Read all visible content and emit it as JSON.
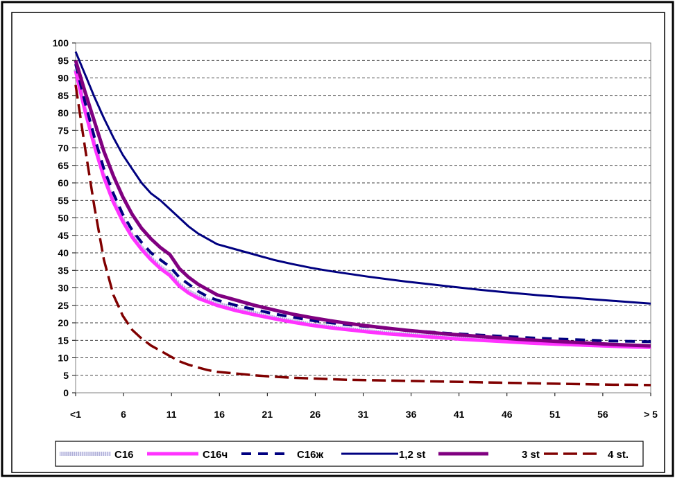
{
  "chart_data": {
    "type": "line",
    "title": "",
    "xlabel": "",
    "ylabel": "",
    "ylim": [
      0,
      100
    ],
    "yticks": [
      0,
      5,
      10,
      15,
      20,
      25,
      30,
      35,
      40,
      45,
      50,
      55,
      60,
      65,
      70,
      75,
      80,
      85,
      90,
      95,
      100
    ],
    "x_tick_labels": [
      "<1",
      "6",
      "11",
      "16",
      "21",
      "26",
      "31",
      "36",
      "41",
      "46",
      "51",
      "56",
      "> 5"
    ],
    "x": [
      1,
      2,
      3,
      4,
      5,
      6,
      7,
      8,
      9,
      10,
      11,
      12,
      13,
      14,
      15,
      16,
      18,
      20,
      22,
      24,
      26,
      28,
      30,
      32,
      34,
      36,
      38,
      40,
      42,
      44,
      46,
      48,
      50,
      52,
      54,
      56,
      58,
      60,
      62
    ],
    "grid": "horizontal dashed",
    "legend_position": "bottom",
    "series": [
      {
        "name": "C16",
        "color": "#c8c8e8",
        "style": "hatched",
        "values": [
          92.5,
          81,
          71,
          62,
          55,
          49.5,
          45,
          41.5,
          38.5,
          36,
          34,
          31,
          29,
          27.5,
          26.5,
          25.5,
          24,
          22.8,
          21.5,
          20.5,
          19.5,
          18.8,
          18.2,
          17.6,
          17.1,
          16.7,
          16.3,
          15.9,
          15.5,
          15.2,
          14.9,
          14.6,
          14.3,
          14.0,
          13.8,
          13.6,
          13.4,
          13.2,
          13.1
        ]
      },
      {
        "name": "C16ч",
        "color": "#ff33ff",
        "style": "solid",
        "values": [
          92,
          80.5,
          70.5,
          61.5,
          54.5,
          49,
          44.5,
          41,
          38,
          35.5,
          33.5,
          30.5,
          28.5,
          27,
          26,
          25,
          23.5,
          22.3,
          21.2,
          20.2,
          19.3,
          18.6,
          18,
          17.4,
          16.9,
          16.5,
          16.1,
          15.7,
          15.3,
          15,
          14.7,
          14.4,
          14.1,
          13.9,
          13.7,
          13.5,
          13.3,
          13.1,
          13
        ]
      },
      {
        "name": "C16ж",
        "color": "#000080",
        "style": "dashed",
        "values": [
          94,
          83,
          73,
          64,
          57,
          51,
          46.5,
          43,
          40,
          38,
          36,
          33,
          31,
          29,
          27.5,
          26.5,
          25,
          23.8,
          22.6,
          21.6,
          20.7,
          20,
          19.4,
          18.9,
          18.4,
          17.9,
          17.5,
          17.1,
          16.8,
          16.5,
          16.2,
          15.9,
          15.6,
          15.4,
          15.2,
          15,
          14.8,
          14.7,
          14.6
        ]
      },
      {
        "name": "1,2 st",
        "color": "#000080",
        "style": "solid",
        "values": [
          97.5,
          91,
          84.5,
          78.5,
          73,
          68,
          64,
          60,
          57,
          55,
          52.5,
          50,
          47.5,
          45.5,
          44,
          42.5,
          41,
          39.5,
          38,
          36.8,
          35.7,
          34.8,
          34,
          33.2,
          32.5,
          31.8,
          31.2,
          30.6,
          30,
          29.4,
          28.9,
          28.4,
          27.9,
          27.5,
          27.1,
          26.7,
          26.3,
          25.9,
          25.5
        ]
      },
      {
        "name": "3 st",
        "color": "#800080",
        "style": "solid",
        "values": [
          95,
          86,
          77.5,
          69,
          62,
          56,
          51,
          47,
          44,
          41.5,
          39.5,
          35.5,
          33,
          31,
          29.5,
          28,
          26.5,
          25,
          23.7,
          22.5,
          21.5,
          20.6,
          19.8,
          19.1,
          18.5,
          17.9,
          17.4,
          16.9,
          16.5,
          16.1,
          15.7,
          15.3,
          15,
          14.7,
          14.4,
          14.1,
          13.8,
          13.6,
          13.4
        ]
      },
      {
        "name": "4 st.",
        "color": "#800000",
        "style": "dashed",
        "values": [
          88,
          70,
          53,
          38,
          28,
          22,
          18,
          15.5,
          13.5,
          12,
          10.5,
          9,
          8,
          7.2,
          6.5,
          6,
          5.5,
          5,
          4.6,
          4.3,
          4.1,
          3.9,
          3.7,
          3.6,
          3.5,
          3.4,
          3.3,
          3.2,
          3.1,
          3.0,
          2.9,
          2.8,
          2.7,
          2.6,
          2.5,
          2.4,
          2.3,
          2.3,
          2.2
        ]
      }
    ]
  }
}
